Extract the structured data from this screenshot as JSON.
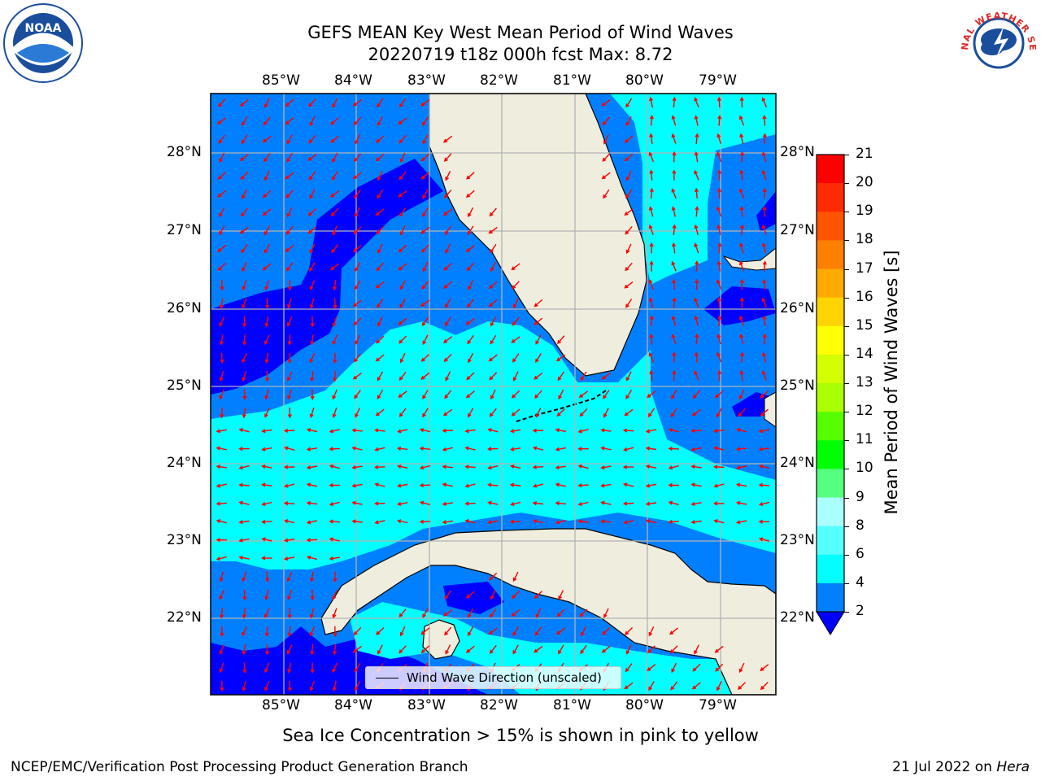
{
  "title": {
    "line1": "GEFS MEAN Key West Mean Period of Wind Waves",
    "line2": "20220719 t18z 000h fcst   Max: 8.72"
  },
  "logos": {
    "left": "NOAA",
    "right": "NATIONAL WEATHER SERVICE",
    "colors": {
      "noaa_blue": "#1a4e9c",
      "nws_red": "#e32626"
    }
  },
  "map": {
    "lon_labels": [
      "85°W",
      "84°W",
      "83°W",
      "82°W",
      "81°W",
      "80°W",
      "79°W"
    ],
    "lat_labels": [
      "28°N",
      "27°N",
      "26°N",
      "25°N",
      "24°N",
      "23°N",
      "22°N"
    ],
    "lon_range": [
      -86.0,
      -78.3
    ],
    "lat_range": [
      21.1,
      28.8
    ],
    "colors": {
      "land": "#efedde",
      "coast": "#000000",
      "grid": "#b3b3b3",
      "arrow": "#ff0000"
    }
  },
  "colorbar": {
    "label": "Mean Period of Wind Waves [s]",
    "ticks": [
      "21",
      "20",
      "19",
      "18",
      "17",
      "16",
      "15",
      "14",
      "13",
      "12",
      "11",
      "10",
      "9",
      "8",
      "6",
      "4",
      "2"
    ],
    "colors": [
      "#ff0000",
      "#ff2b00",
      "#ff5500",
      "#ff7f00",
      "#ffaa00",
      "#ffd400",
      "#ffff00",
      "#d4ff00",
      "#aaff00",
      "#55ff00",
      "#00ff00",
      "#55ff7f",
      "#aaffff",
      "#55ffff",
      "#00ffff",
      "#0080ff"
    ],
    "under_color": "#0000ff"
  },
  "legend": {
    "label": "Wind Wave Direction (unscaled)"
  },
  "note": "Sea Ice Concentration > 15% is shown in pink to yellow",
  "footer": {
    "left": "NCEP/EMC/Verification Post Processing Product Generation Branch",
    "right_date": "21 Jul 2022 on ",
    "right_host": "Hera"
  }
}
